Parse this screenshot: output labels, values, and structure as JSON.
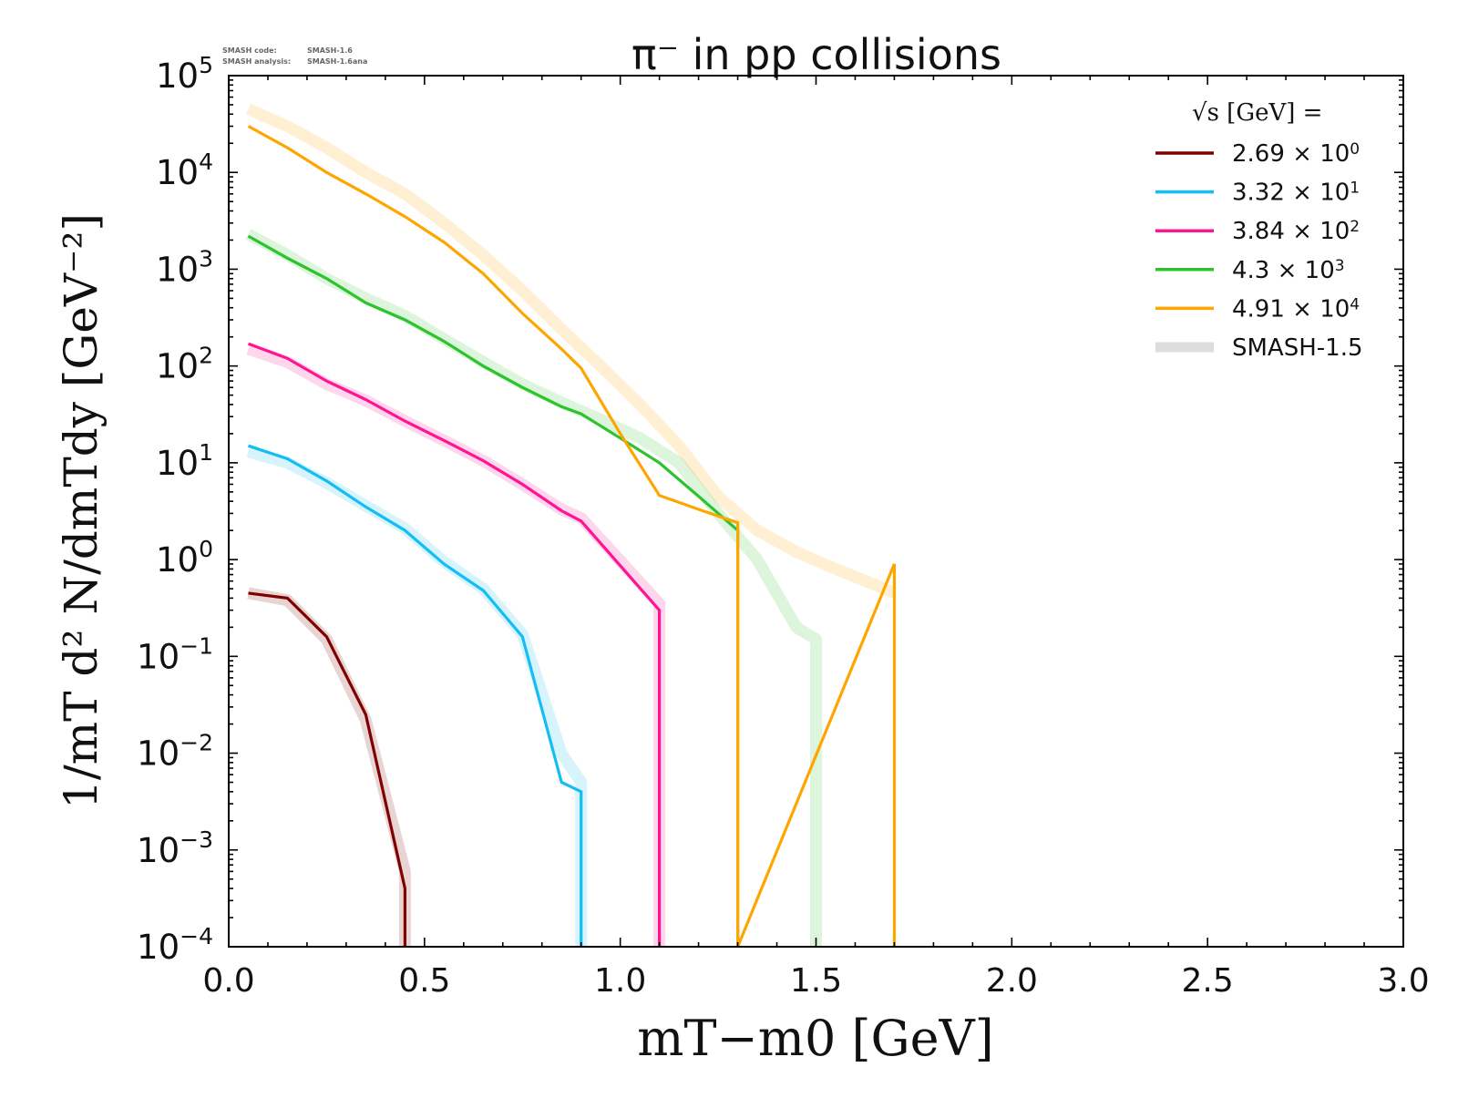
{
  "chart_data": {
    "type": "line",
    "title": "π⁻ in pp collisions",
    "header_note": {
      "line1_label": "SMASH code:",
      "line1_value": "SMASH-1.6",
      "line2_label": "SMASH analysis:",
      "line2_value": "SMASH-1.6ana"
    },
    "xlabel": "mT−m0 [GeV]",
    "ylabel": "1/mT d² N/dmTdy [GeV⁻²]",
    "xlim": [
      0.0,
      3.0
    ],
    "ylim": [
      0.0001,
      100000
    ],
    "y_scale": "log",
    "grid": false,
    "legend_position": "top-right",
    "legend_title": "√s [GeV] =",
    "x_ticks": [
      {
        "value": 0.0,
        "label": "0.0"
      },
      {
        "value": 0.5,
        "label": "0.5"
      },
      {
        "value": 1.0,
        "label": "1.0"
      },
      {
        "value": 1.5,
        "label": "1.5"
      },
      {
        "value": 2.0,
        "label": "2.0"
      },
      {
        "value": 2.5,
        "label": "2.5"
      },
      {
        "value": 3.0,
        "label": "3.0"
      }
    ],
    "y_ticks": [
      {
        "exp": 5,
        "base": "10",
        "sup": "5"
      },
      {
        "exp": 4,
        "base": "10",
        "sup": "4"
      },
      {
        "exp": 3,
        "base": "10",
        "sup": "3"
      },
      {
        "exp": 2,
        "base": "10",
        "sup": "2"
      },
      {
        "exp": 1,
        "base": "10",
        "sup": "1"
      },
      {
        "exp": 0,
        "base": "10",
        "sup": "0"
      },
      {
        "exp": -1,
        "base": "10",
        "sup": "−1"
      },
      {
        "exp": -2,
        "base": "10",
        "sup": "−2"
      },
      {
        "exp": -3,
        "base": "10",
        "sup": "−3"
      },
      {
        "exp": -4,
        "base": "10",
        "sup": "−4"
      }
    ],
    "series": [
      {
        "name": "2.69 × 10⁰",
        "legend_mantissa": "2.69",
        "legend_exp": "0",
        "color": "#7f0000",
        "x": [
          0.05,
          0.15,
          0.25,
          0.35,
          0.45,
          0.45
        ],
        "y": [
          0.45,
          0.4,
          0.16,
          0.025,
          0.0004,
          0.0001
        ]
      },
      {
        "name": "3.32 × 10¹",
        "legend_mantissa": "3.32",
        "legend_exp": "1",
        "color": "#14bef5",
        "x": [
          0.05,
          0.15,
          0.25,
          0.35,
          0.45,
          0.55,
          0.65,
          0.75,
          0.85,
          0.9,
          0.9
        ],
        "y": [
          15,
          11,
          6.5,
          3.5,
          2.0,
          0.9,
          0.48,
          0.16,
          0.005,
          0.004,
          0.0001
        ]
      },
      {
        "name": "3.84 × 10²",
        "legend_mantissa": "3.84",
        "legend_exp": "2",
        "color": "#ff1493",
        "x": [
          0.05,
          0.15,
          0.25,
          0.35,
          0.45,
          0.55,
          0.65,
          0.75,
          0.85,
          0.9,
          1.1,
          1.1
        ],
        "y": [
          170,
          120,
          70,
          45,
          27,
          17,
          10.5,
          6,
          3.2,
          2.5,
          0.3,
          0.0001
        ]
      },
      {
        "name": "4.3 × 10³",
        "legend_mantissa": "4.3",
        "legend_exp": "3",
        "color": "#2dc32d",
        "x": [
          0.05,
          0.15,
          0.25,
          0.35,
          0.45,
          0.55,
          0.65,
          0.75,
          0.85,
          0.9,
          1.0,
          1.1,
          1.2,
          1.3,
          1.3
        ],
        "y": [
          2200,
          1300,
          800,
          450,
          300,
          180,
          100,
          60,
          38,
          32,
          18,
          10,
          4.5,
          2.0,
          0.0001
        ]
      },
      {
        "name": "4.91 × 10⁴",
        "legend_mantissa": "4.91",
        "legend_exp": "4",
        "color": "#ffa500",
        "x": [
          0.05,
          0.15,
          0.25,
          0.35,
          0.45,
          0.55,
          0.65,
          0.75,
          0.85,
          0.9,
          1.0,
          1.1,
          1.2,
          1.3,
          1.3,
          1.7,
          1.7
        ],
        "y": [
          30000,
          18000,
          10000,
          6000,
          3500,
          1900,
          900,
          350,
          150,
          95,
          20,
          4.6,
          3.3,
          2.4,
          0.0001,
          0.9,
          0.0001
        ]
      }
    ],
    "reference_bands": {
      "name": "SMASH-1.5",
      "legend_color": "#dddddd",
      "bands": [
        {
          "color": "#7f0000",
          "x": [
            0.05,
            0.15,
            0.25,
            0.35,
            0.45,
            0.45
          ],
          "y": [
            0.45,
            0.38,
            0.15,
            0.022,
            0.0006,
            0.0001
          ]
        },
        {
          "color": "#14bef5",
          "x": [
            0.05,
            0.15,
            0.25,
            0.35,
            0.45,
            0.55,
            0.65,
            0.75,
            0.85,
            0.9,
            0.9
          ],
          "y": [
            13,
            10,
            6.2,
            3.6,
            2.1,
            0.95,
            0.5,
            0.17,
            0.01,
            0.005,
            0.0001
          ]
        },
        {
          "color": "#ff1493",
          "x": [
            0.05,
            0.15,
            0.25,
            0.35,
            0.45,
            0.55,
            0.65,
            0.75,
            0.85,
            0.9,
            1.1,
            1.1
          ],
          "y": [
            150,
            110,
            65,
            44,
            27,
            17,
            10.5,
            6,
            3.3,
            2.7,
            0.35,
            0.0001
          ]
        },
        {
          "color": "#2dc32d",
          "x": [
            0.05,
            0.15,
            0.25,
            0.35,
            0.45,
            0.55,
            0.65,
            0.75,
            0.85,
            0.95,
            1.05,
            1.15,
            1.25,
            1.35,
            1.45,
            1.5,
            1.5
          ],
          "y": [
            2300,
            1400,
            800,
            500,
            330,
            190,
            110,
            65,
            42,
            28,
            18,
            10,
            3.0,
            1.0,
            0.2,
            0.15,
            0.0001
          ]
        },
        {
          "color": "#ffa500",
          "x": [
            0.05,
            0.15,
            0.25,
            0.35,
            0.45,
            0.55,
            0.65,
            0.75,
            0.85,
            0.95,
            1.05,
            1.15,
            1.25,
            1.35,
            1.45,
            1.55,
            1.65,
            1.7
          ],
          "y": [
            45000,
            30000,
            18000,
            10000,
            6000,
            3000,
            1400,
            600,
            240,
            100,
            40,
            15,
            4.5,
            2.0,
            1.2,
            0.8,
            0.55,
            0.45
          ]
        }
      ]
    }
  }
}
